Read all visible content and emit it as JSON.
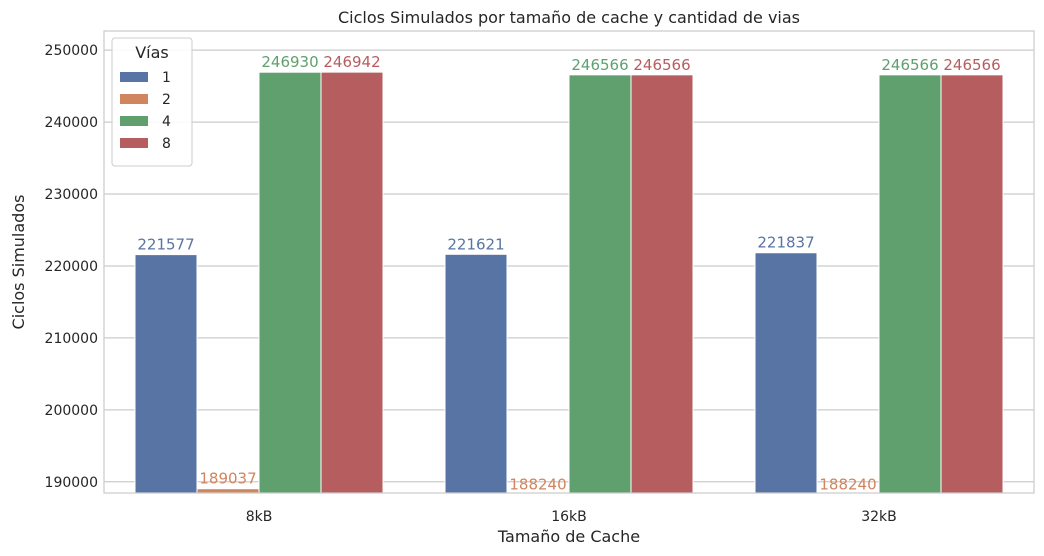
{
  "chart_data": {
    "type": "bar",
    "title": "Ciclos Simulados por tamaño de cache y cantidad de vias",
    "xlabel": "Tamaño de Cache",
    "ylabel": "Ciclos Simulados",
    "categories": [
      "8kB",
      "16kB",
      "32kB"
    ],
    "series": [
      {
        "name": "1",
        "color": "#5874a4",
        "values": [
          221577,
          221621,
          221837
        ],
        "labels": [
          "221577",
          "221621",
          "221837"
        ]
      },
      {
        "name": "2",
        "color": "#d0855e",
        "values": [
          189037,
          188240,
          188240
        ],
        "labels": [
          "189037",
          "188240",
          "188240"
        ]
      },
      {
        "name": "4",
        "color": "#5fa06e",
        "values": [
          246930,
          246566,
          246566
        ],
        "labels": [
          "246930",
          "246566",
          "246566"
        ]
      },
      {
        "name": "8",
        "color": "#b65d60",
        "values": [
          246942,
          246566,
          246566
        ],
        "labels": [
          "246942",
          "246566",
          "246566"
        ]
      }
    ],
    "ylim": [
      188440,
      252660
    ],
    "yticks": [
      190000,
      200000,
      210000,
      220000,
      230000,
      240000,
      250000
    ],
    "ytick_labels": [
      "190000",
      "200000",
      "210000",
      "220000",
      "230000",
      "240000",
      "250000"
    ],
    "grid": true,
    "legend": {
      "title": "Vías",
      "placement": "top-left"
    }
  }
}
